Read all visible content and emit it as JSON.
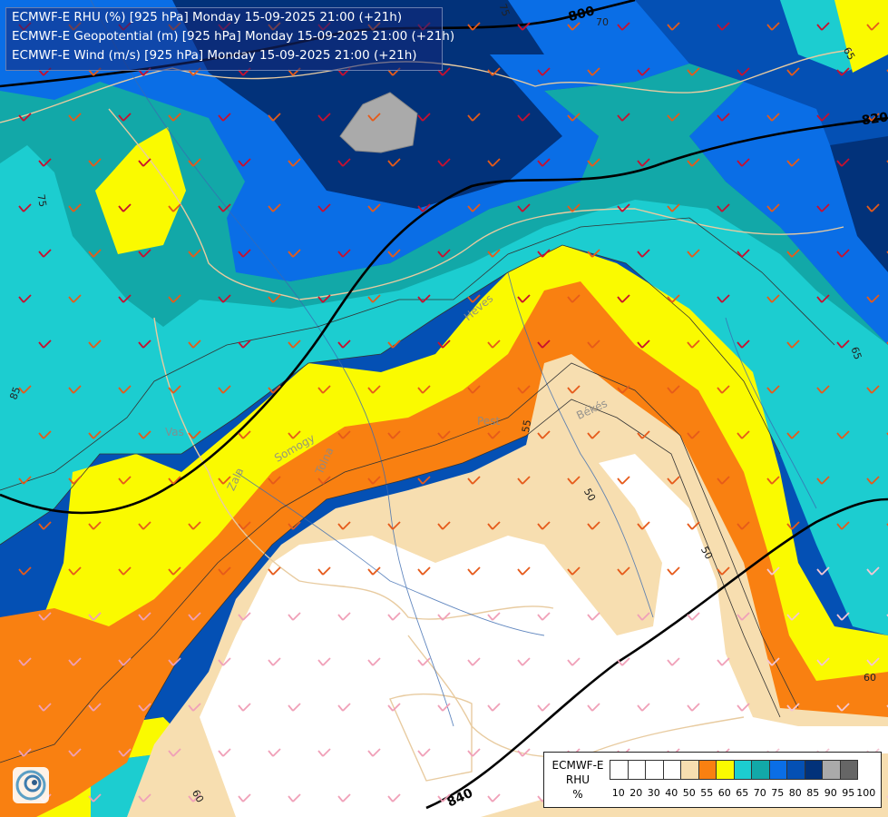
{
  "header": {
    "line1": "ECMWF-E RHU (%) [925 hPa] Monday 15-09-2025 21:00 (+21h)",
    "line2": "ECMWF-E Geopotential (m) [925 hPa] Monday 15-09-2025 21:00 (+21h)",
    "line3": "ECMWF-E Wind (m/s) [925 hPa] Monday 15-09-2025 21:00 (+21h)"
  },
  "legend": {
    "title_model": "ECMWF-E",
    "title_var": "RHU",
    "title_unit": "%",
    "ticks": [
      "10",
      "20",
      "30",
      "40",
      "50",
      "55",
      "60",
      "65",
      "70",
      "75",
      "80",
      "85",
      "90",
      "95",
      "100"
    ],
    "colors": [
      "#ffffff",
      "#ffffff",
      "#ffffff",
      "#ffffff",
      "#f7deb0",
      "#f98011",
      "#fafa00",
      "#1ccdd0",
      "#12a8a8",
      "#0a6ee6",
      "#0450b4",
      "#02327a",
      "#aaaaaa",
      "#666666"
    ]
  },
  "map_labels": {
    "geopotential": [
      "800",
      "820",
      "840"
    ],
    "rhu_contours": [
      "75",
      "70",
      "65",
      "75",
      "85",
      "65",
      "55",
      "50",
      "50",
      "60",
      "60",
      "65"
    ],
    "places": [
      "Pest",
      "Békés",
      "Heves",
      "Zala",
      "Vas",
      "Tolna",
      "Somogy"
    ]
  },
  "colors": {
    "rhu_50": "#f7deb0",
    "rhu_55": "#f98011",
    "rhu_60": "#fafa00",
    "rhu_65": "#1ccdd0",
    "rhu_70": "#12a8a8",
    "rhu_75": "#0a6ee6",
    "rhu_80": "#0450b4",
    "rhu_85": "#02327a",
    "rhu_90": "#aaaaaa"
  }
}
